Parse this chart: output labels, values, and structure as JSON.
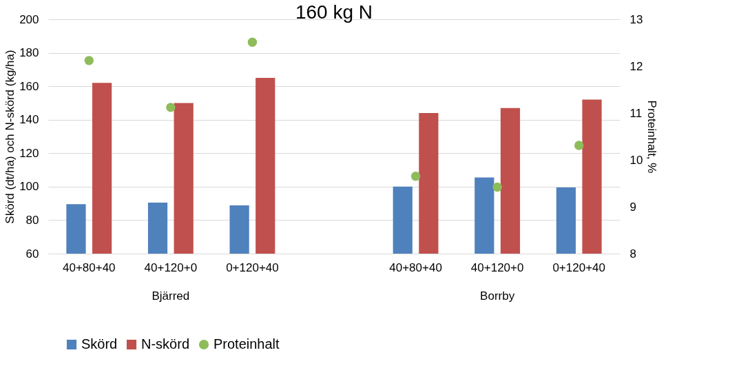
{
  "chart_data": {
    "type": "bar",
    "title": "160 kg N",
    "ylabel": "Skörd (dt/ha) och N-skörd (kg/ha)",
    "y2label": "Proteinhalt, %",
    "categories": [
      "40+80+40",
      "40+120+0",
      "0+120+40",
      null,
      "40+80+40",
      "40+120+0",
      "0+120+40"
    ],
    "series": [
      {
        "name": "Skörd",
        "color": "#4f81bd",
        "values": [
          89.5,
          90.5,
          88.8,
          null,
          100,
          105.5,
          99.5
        ]
      },
      {
        "name": "N-skörd",
        "color": "#c0504d",
        "values": [
          162,
          150,
          165,
          null,
          144,
          147,
          152
        ]
      },
      {
        "name": "Proteinhalt",
        "color": "#8fbc5a",
        "type": "scatter",
        "axis": "y2",
        "marker": "circle",
        "values": [
          12.12,
          11.12,
          12.51,
          null,
          9.65,
          9.42,
          10.31
        ]
      }
    ],
    "ylim": [
      60,
      200
    ],
    "yticks": [
      60,
      80,
      100,
      120,
      140,
      160,
      180,
      200
    ],
    "y2lim": [
      8,
      13
    ],
    "y2ticks": [
      8,
      9,
      10,
      11,
      12,
      13
    ],
    "grid": "y",
    "legend": "bottom",
    "annotations": [
      "Bjärred",
      "Borrby"
    ]
  }
}
